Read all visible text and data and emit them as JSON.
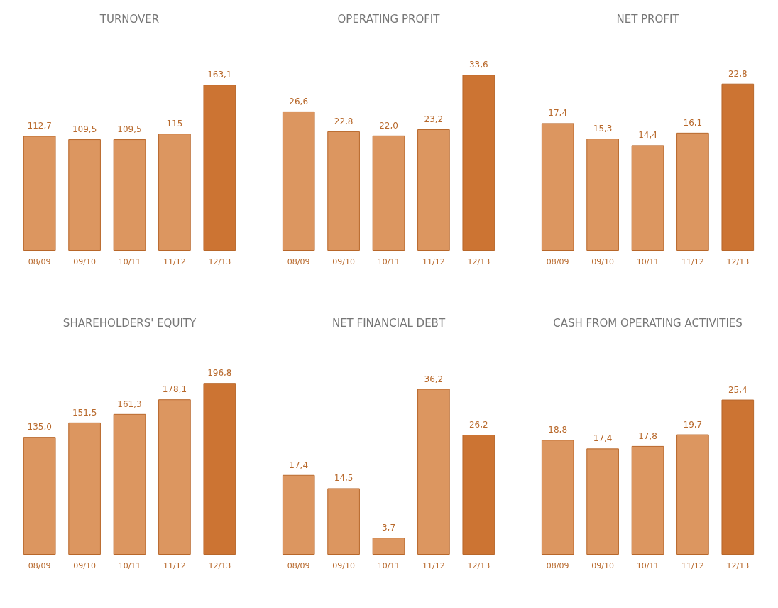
{
  "chart_data": [
    {
      "type": "bar",
      "title": "TURNOVER",
      "categories": [
        "08/09",
        "09/10",
        "10/11",
        "11/12",
        "12/13"
      ],
      "values": [
        112.7,
        109.5,
        109.5,
        115,
        163.1
      ],
      "value_labels": [
        "112,7",
        "109,5",
        "109,5",
        "115",
        "163,1"
      ],
      "colors": [
        "#dc9660",
        "#dc9660",
        "#dc9660",
        "#dc9660",
        "#cc7433"
      ],
      "tick_labels": "x"
    },
    {
      "type": "bar",
      "title": "OPERATING PROFIT",
      "categories": [
        "08/09",
        "09/10",
        "10/11",
        "11/12",
        "12/13"
      ],
      "values": [
        26.6,
        22.8,
        22.0,
        23.2,
        33.6
      ],
      "value_labels": [
        "26,6",
        "22,8",
        "22,0",
        "23,2",
        "33,6"
      ],
      "colors": [
        "#dc9660",
        "#dc9660",
        "#dc9660",
        "#dc9660",
        "#cc7433"
      ],
      "tick_labels": "x"
    },
    {
      "type": "bar",
      "title": "NET PROFIT",
      "categories": [
        "08/09",
        "09/10",
        "10/11",
        "11/12",
        "12/13"
      ],
      "values": [
        17.4,
        15.3,
        14.4,
        16.1,
        22.8
      ],
      "value_labels": [
        "17,4",
        "15,3",
        "14,4",
        "16,1",
        "22,8"
      ],
      "colors": [
        "#dc9660",
        "#dc9660",
        "#dc9660",
        "#dc9660",
        "#cc7433"
      ],
      "tick_labels": "x"
    },
    {
      "type": "bar",
      "title": "SHAREHOLDERS' EQUITY",
      "categories": [
        "08/09",
        "09/10",
        "10/11",
        "11/12",
        "12/13"
      ],
      "values": [
        135.0,
        151.5,
        161.3,
        178.1,
        196.8
      ],
      "value_labels": [
        "135,0",
        "151,5",
        "161,3",
        "178,1",
        "196,8"
      ],
      "colors": [
        "#dc9660",
        "#dc9660",
        "#dc9660",
        "#dc9660",
        "#cc7433"
      ],
      "tick_labels": "x"
    },
    {
      "type": "bar",
      "title": "NET FINANCIAL DEBT",
      "categories": [
        "08/09",
        "09/10",
        "10/11",
        "11/12",
        "12/13"
      ],
      "values": [
        17.4,
        14.5,
        3.7,
        36.2,
        26.2
      ],
      "value_labels": [
        "17,4",
        "14,5",
        "3,7",
        "36,2",
        "26,2"
      ],
      "colors": [
        "#dc9660",
        "#dc9660",
        "#dc9660",
        "#dc9660",
        "#cc7433"
      ],
      "tick_labels": "x"
    },
    {
      "type": "bar",
      "title": "CASH FROM OPERATING ACTIVITIES",
      "categories": [
        "08/09",
        "09/10",
        "10/11",
        "11/12",
        "12/13"
      ],
      "values": [
        18.8,
        17.4,
        17.8,
        19.7,
        25.4
      ],
      "value_labels": [
        "18,8",
        "17,4",
        "17,8",
        "19,7",
        "25,4"
      ],
      "colors": [
        "#dc9660",
        "#dc9660",
        "#dc9660",
        "#dc9660",
        "#cc7433"
      ],
      "tick_labels": "x"
    }
  ]
}
